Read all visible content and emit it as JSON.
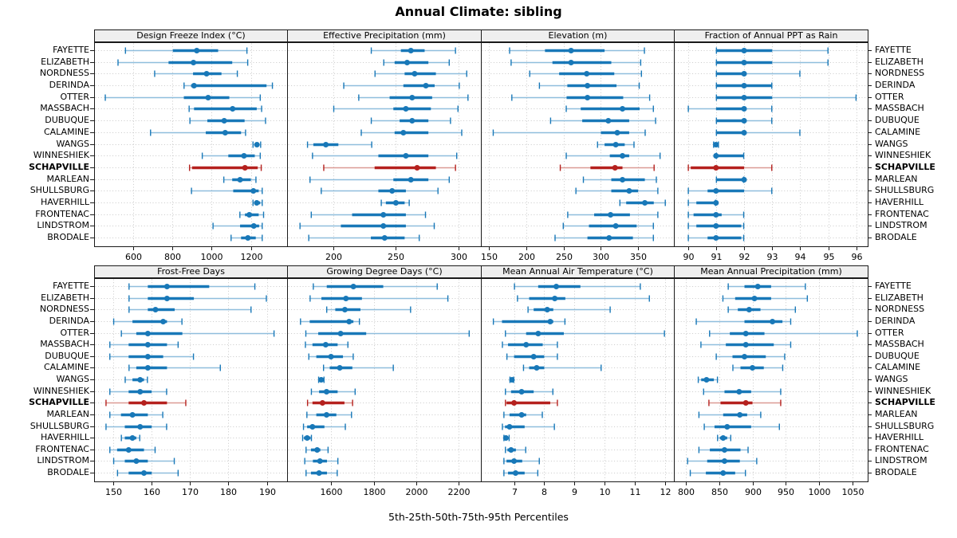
{
  "title": "Annual Climate: sibling",
  "xlabel": "5th-25th-50th-75th-95th Percentiles",
  "highlight_site": "SCHAPVILLE",
  "sites": [
    "FAYETTE",
    "ELIZABETH",
    "NORDNESS",
    "DERINDA",
    "OTTER",
    "MASSBACH",
    "DUBUQUE",
    "CALAMINE",
    "WANGS",
    "WINNESHIEK",
    "SCHAPVILLE",
    "MARLEAN",
    "SHULLSBURG",
    "HAVERHILL",
    "FRONTENAC",
    "LINDSTROM",
    "BRODALE"
  ],
  "colors": {
    "blue": "#1878B8",
    "blue_light": "#8FBEDD",
    "red": "#B5211E",
    "red_light": "#DB9A94",
    "header_bg": "#EFEFEF",
    "panel_border": "#1A1A1A",
    "grid": "#C9C9C9",
    "text": "#000000"
  },
  "chart_data": {
    "type": "dotplot",
    "percentile_labels": [
      "5th",
      "25th",
      "50th",
      "75th",
      "95th"
    ],
    "panels": [
      {
        "title": "Design Freeze Index (°C)",
        "row": 0,
        "col": 0,
        "xlim": [
          400,
          1385
        ],
        "ticks": [
          600,
          800,
          1000,
          1200
        ],
        "values": [
          [
            558,
            802,
            924,
            1033,
            1182
          ],
          [
            520,
            780,
            907,
            1105,
            1186
          ],
          [
            707,
            905,
            974,
            1050,
            1133
          ],
          [
            857,
            895,
            910,
            1280,
            1312
          ],
          [
            455,
            858,
            982,
            1090,
            1250
          ],
          [
            883,
            910,
            1107,
            1230,
            1257
          ],
          [
            887,
            978,
            1064,
            1168,
            1277
          ],
          [
            686,
            970,
            1069,
            1150,
            1175
          ],
          [
            1209,
            1219,
            1231,
            1243,
            1252
          ],
          [
            950,
            1085,
            1165,
            1220,
            1250
          ],
          [
            885,
            900,
            1170,
            1235,
            1255
          ],
          [
            1060,
            1105,
            1145,
            1200,
            1228
          ],
          [
            895,
            1110,
            1213,
            1240,
            1260
          ],
          [
            1209,
            1222,
            1230,
            1248,
            1260
          ],
          [
            1142,
            1170,
            1192,
            1240,
            1267
          ],
          [
            1005,
            1145,
            1215,
            1242,
            1260
          ],
          [
            1097,
            1150,
            1185,
            1225,
            1260
          ]
        ]
      },
      {
        "title": "Effective Precipitation (mm)",
        "row": 0,
        "col": 1,
        "xlim": [
          163,
          318
        ],
        "ticks": [
          200,
          250,
          300
        ],
        "values": [
          [
            230,
            254,
            262,
            273,
            298
          ],
          [
            240,
            249,
            259,
            276,
            293
          ],
          [
            233,
            257,
            265,
            282,
            307
          ],
          [
            208,
            256,
            274,
            281,
            301
          ],
          [
            220,
            245,
            263,
            279,
            308
          ],
          [
            200,
            248,
            258,
            278,
            300
          ],
          [
            230,
            253,
            263,
            276,
            294
          ],
          [
            222,
            249,
            256,
            276,
            303
          ],
          [
            179,
            184,
            194,
            204,
            231
          ],
          [
            183,
            236,
            258,
            276,
            299
          ],
          [
            192,
            233,
            267,
            282,
            298
          ],
          [
            181,
            248,
            262,
            276,
            293
          ],
          [
            190,
            236,
            247,
            258,
            284
          ],
          [
            238,
            242,
            250,
            257,
            261
          ],
          [
            182,
            215,
            240,
            258,
            274
          ],
          [
            173,
            206,
            240,
            258,
            281
          ],
          [
            180,
            230,
            241,
            257,
            269
          ]
        ]
      },
      {
        "title": "Elevation (m)",
        "row": 0,
        "col": 2,
        "xlim": [
          139,
          398
        ],
        "ticks": [
          150,
          200,
          250,
          300,
          350
        ],
        "values": [
          [
            177,
            225,
            260,
            305,
            359
          ],
          [
            179,
            235,
            260,
            314,
            354
          ],
          [
            204,
            244,
            281,
            318,
            355
          ],
          [
            217,
            255,
            282,
            321,
            352
          ],
          [
            180,
            254,
            282,
            330,
            366
          ],
          [
            253,
            273,
            329,
            352,
            371
          ],
          [
            232,
            275,
            310,
            338,
            374
          ],
          [
            155,
            300,
            322,
            338,
            360
          ],
          [
            295,
            305,
            320,
            332,
            345
          ],
          [
            253,
            312,
            329,
            338,
            380
          ],
          [
            245,
            286,
            319,
            329,
            372
          ],
          [
            276,
            314,
            329,
            359,
            375
          ],
          [
            266,
            314,
            338,
            350,
            377
          ],
          [
            325,
            334,
            359,
            371,
            387
          ],
          [
            255,
            291,
            313,
            339,
            377
          ],
          [
            249,
            284,
            320,
            348,
            371
          ],
          [
            238,
            282,
            311,
            343,
            371
          ]
        ]
      },
      {
        "title": "Fraction of Annual PPT as Rain",
        "row": 0,
        "col": 3,
        "xlim": [
          89.5,
          96.4
        ],
        "ticks": [
          90,
          91,
          92,
          93,
          94,
          95,
          96
        ],
        "values": [
          [
            91,
            91,
            92,
            93,
            95
          ],
          [
            91,
            91,
            92,
            93,
            95
          ],
          [
            91,
            91,
            92,
            92,
            94
          ],
          [
            91,
            91,
            92,
            93,
            93
          ],
          [
            91,
            91,
            92,
            93,
            96
          ],
          [
            90,
            91,
            92,
            92,
            93
          ],
          [
            91,
            91,
            92,
            92,
            93
          ],
          [
            91,
            91,
            92,
            92,
            94
          ],
          [
            90.9,
            91,
            91,
            91,
            91.1
          ],
          [
            91,
            91,
            91,
            92,
            92
          ],
          [
            90,
            90.1,
            91,
            92,
            93
          ],
          [
            91,
            91,
            92,
            92,
            92
          ],
          [
            90,
            90.7,
            91,
            92,
            93
          ],
          [
            90,
            90.3,
            91,
            91,
            91
          ],
          [
            90,
            90.2,
            91,
            91.2,
            92
          ],
          [
            90,
            90.3,
            91,
            91.9,
            92
          ],
          [
            90,
            90.7,
            91,
            91.9,
            92
          ]
        ]
      },
      {
        "title": "Frost-Free Days",
        "row": 1,
        "col": 0,
        "xlim": [
          145,
          195.3
        ],
        "ticks": [
          150,
          160,
          170,
          180,
          190
        ],
        "values": [
          [
            154,
            159,
            164,
            175,
            187
          ],
          [
            154,
            159,
            164,
            171,
            190
          ],
          [
            154,
            159,
            161,
            166,
            186
          ],
          [
            150,
            155,
            163,
            164,
            168
          ],
          [
            152,
            156,
            159,
            168,
            192
          ],
          [
            149,
            154,
            159,
            164,
            167
          ],
          [
            149,
            154,
            159,
            163,
            171
          ],
          [
            154,
            156,
            159,
            164,
            178
          ],
          [
            153,
            155,
            157,
            158,
            159
          ],
          [
            149,
            154,
            157,
            160,
            164
          ],
          [
            148,
            154,
            158,
            164,
            169
          ],
          [
            149,
            152,
            155,
            159,
            163
          ],
          [
            148,
            153,
            157,
            160,
            164
          ],
          [
            152,
            153,
            155,
            156,
            157
          ],
          [
            149,
            151,
            154,
            158,
            161
          ],
          [
            150,
            153,
            156,
            159,
            166
          ],
          [
            151,
            154,
            158,
            160,
            167
          ]
        ]
      },
      {
        "title": "Growing Degree Days (°C)",
        "row": 1,
        "col": 1,
        "xlim": [
          1394,
          2303
        ],
        "ticks": [
          1600,
          1800,
          2000,
          2200
        ],
        "values": [
          [
            1515,
            1580,
            1705,
            1845,
            2100
          ],
          [
            1500,
            1555,
            1670,
            1745,
            2150
          ],
          [
            1578,
            1620,
            1665,
            1738,
            1975
          ],
          [
            1455,
            1500,
            1685,
            1705,
            1735
          ],
          [
            1480,
            1540,
            1645,
            1765,
            2250
          ],
          [
            1478,
            1513,
            1575,
            1631,
            1681
          ],
          [
            1494,
            1531,
            1600,
            1656,
            1706
          ],
          [
            1563,
            1594,
            1641,
            1700,
            1894
          ],
          [
            1540,
            1548,
            1554,
            1560,
            1569
          ],
          [
            1506,
            1544,
            1579,
            1631,
            1715
          ],
          [
            1488,
            1513,
            1560,
            1663,
            1703
          ],
          [
            1485,
            1531,
            1579,
            1625,
            1698
          ],
          [
            1469,
            1488,
            1513,
            1569,
            1669
          ],
          [
            1465,
            1473,
            1488,
            1504,
            1510
          ],
          [
            1481,
            1506,
            1535,
            1550,
            1588
          ],
          [
            1475,
            1515,
            1548,
            1581,
            1634
          ],
          [
            1481,
            1506,
            1544,
            1581,
            1631
          ]
        ]
      },
      {
        "title": "Mean Annual Air Temperature (°C)",
        "row": 1,
        "col": 2,
        "xlim": [
          5.9,
          12.3
        ],
        "ticks": [
          7,
          8,
          9,
          10,
          11,
          12
        ],
        "values": [
          [
            7.0,
            7.8,
            8.4,
            9.2,
            11.2
          ],
          [
            7.1,
            7.5,
            8.35,
            8.7,
            11.5
          ],
          [
            7.45,
            7.65,
            8.1,
            8.3,
            10.2
          ],
          [
            6.3,
            6.6,
            8.2,
            8.3,
            8.7
          ],
          [
            6.7,
            7.4,
            7.8,
            8.65,
            12.0
          ],
          [
            6.6,
            6.8,
            7.4,
            7.95,
            8.45
          ],
          [
            6.75,
            7.0,
            7.65,
            8.0,
            8.45
          ],
          [
            7.3,
            7.5,
            7.75,
            8.0,
            9.9
          ],
          [
            6.85,
            6.9,
            6.93,
            6.97,
            7.0
          ],
          [
            6.7,
            6.9,
            7.25,
            7.65,
            8.3
          ],
          [
            6.7,
            6.75,
            7.0,
            8.2,
            8.45
          ],
          [
            6.65,
            6.85,
            7.25,
            7.4,
            7.95
          ],
          [
            6.6,
            6.7,
            6.85,
            7.35,
            8.35
          ],
          [
            6.65,
            6.7,
            6.73,
            6.8,
            6.85
          ],
          [
            6.7,
            6.78,
            6.9,
            7.06,
            7.4
          ],
          [
            6.65,
            6.75,
            7.0,
            7.27,
            7.85
          ],
          [
            6.65,
            6.8,
            7.05,
            7.35,
            7.8
          ]
        ]
      },
      {
        "title": "Mean Annual Precipitation (mm)",
        "row": 1,
        "col": 3,
        "xlim": [
          782,
          1073
        ],
        "ticks": [
          800,
          850,
          900,
          950,
          1000,
          1050
        ],
        "values": [
          [
            863,
            888,
            908,
            928,
            980
          ],
          [
            855,
            874,
            903,
            928,
            983
          ],
          [
            863,
            878,
            895,
            912,
            965
          ],
          [
            815,
            888,
            930,
            945,
            958
          ],
          [
            835,
            866,
            890,
            918,
            1058
          ],
          [
            822,
            860,
            890,
            932,
            958
          ],
          [
            845,
            870,
            888,
            920,
            949
          ],
          [
            870,
            882,
            900,
            917,
            946
          ],
          [
            818,
            823,
            831,
            842,
            848
          ],
          [
            826,
            858,
            880,
            898,
            943
          ],
          [
            834,
            852,
            890,
            900,
            943
          ],
          [
            819,
            856,
            881,
            892,
            913
          ],
          [
            827,
            843,
            862,
            898,
            941
          ],
          [
            847,
            851,
            856,
            862,
            868
          ],
          [
            819,
            836,
            858,
            882,
            894
          ],
          [
            802,
            832,
            858,
            881,
            907
          ],
          [
            806,
            830,
            856,
            874,
            890
          ]
        ]
      }
    ]
  }
}
